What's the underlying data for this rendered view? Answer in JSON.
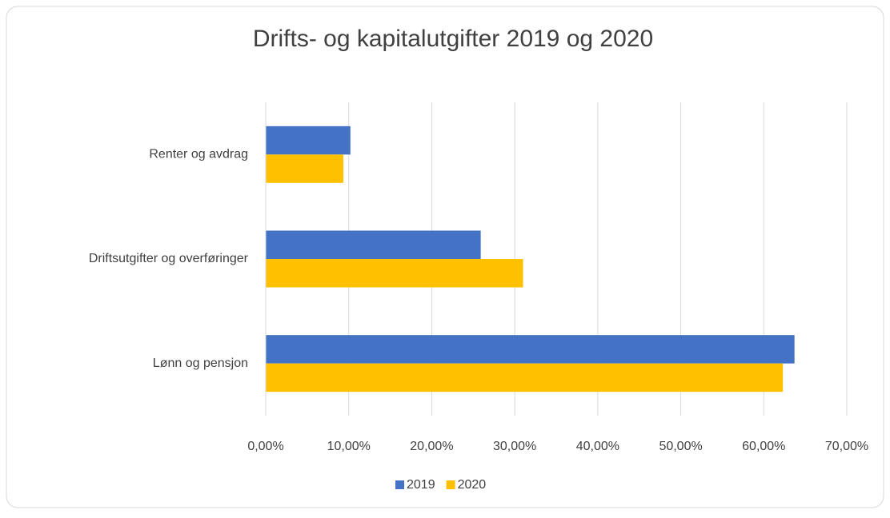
{
  "chart_data": {
    "type": "hbar",
    "title": "Drifts- og kapitalutgifter 2019 og 2020",
    "categories": [
      "Renter og avdrag",
      "Driftsutgifter og overføringer",
      "Lønn og pensjon"
    ],
    "series": [
      {
        "name": "2019",
        "color": "#4472c4",
        "values": [
          10.2,
          25.9,
          63.7
        ]
      },
      {
        "name": "2020",
        "color": "#ffc000",
        "values": [
          9.35,
          31.0,
          62.3
        ]
      }
    ],
    "xlim": [
      0,
      70
    ],
    "xticks": [
      {
        "value": 0,
        "label": "0,00%"
      },
      {
        "value": 10,
        "label": "10,00%"
      },
      {
        "value": 20,
        "label": "20,00%"
      },
      {
        "value": 30,
        "label": "30,00%"
      },
      {
        "value": 40,
        "label": "40,00%"
      },
      {
        "value": 50,
        "label": "50,00%"
      },
      {
        "value": 60,
        "label": "60,00%"
      },
      {
        "value": 70,
        "label": "70,00%"
      }
    ],
    "grid": true,
    "legend": "bottom"
  }
}
